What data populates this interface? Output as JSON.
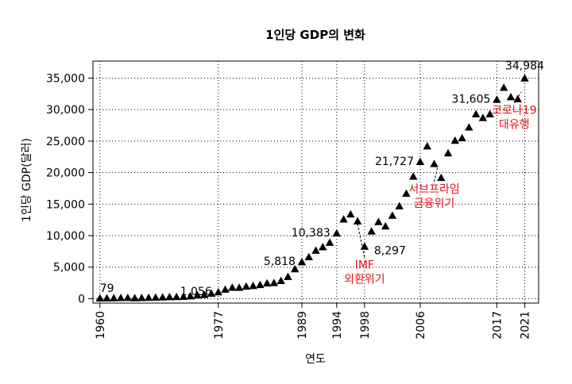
{
  "chart_data": {
    "type": "scatter",
    "marker": "filled-triangle",
    "title": "1인당 GDP의 변화",
    "xlabel": "연도",
    "ylabel": "1인당 GDP(달러)",
    "xlim": [
      1959,
      2023
    ],
    "ylim": [
      -700,
      37700
    ],
    "grid": true,
    "grid_style": "dotted",
    "x_ticks": [
      1960,
      1977,
      1989,
      1994,
      1998,
      2006,
      2017,
      2021
    ],
    "y_ticks": [
      0,
      5000,
      10000,
      15000,
      20000,
      25000,
      30000,
      35000
    ],
    "y_tick_labels": [
      "0",
      "5,000",
      "10,000",
      "15,000",
      "20,000",
      "25,000",
      "30,000",
      "35,000"
    ],
    "x": [
      1960,
      1961,
      1962,
      1963,
      1964,
      1965,
      1966,
      1967,
      1968,
      1969,
      1970,
      1971,
      1972,
      1973,
      1974,
      1975,
      1976,
      1977,
      1978,
      1979,
      1980,
      1981,
      1982,
      1983,
      1984,
      1985,
      1986,
      1987,
      1988,
      1989,
      1990,
      1991,
      1992,
      1993,
      1994,
      1995,
      1996,
      1997,
      1998,
      1999,
      2000,
      2001,
      2002,
      2003,
      2004,
      2005,
      2006,
      2007,
      2008,
      2009,
      2010,
      2011,
      2012,
      2013,
      2014,
      2015,
      2016,
      2017,
      2018,
      2019,
      2020,
      2021
    ],
    "y": [
      79,
      90,
      105,
      140,
      150,
      110,
      135,
      165,
      195,
      240,
      280,
      300,
      325,
      410,
      560,
      630,
      830,
      1056,
      1470,
      1780,
      1760,
      1950,
      2050,
      2200,
      2450,
      2520,
      2840,
      3490,
      4700,
      5818,
      6630,
      7650,
      8200,
      8900,
      10383,
      12600,
      13400,
      12300,
      8297,
      10700,
      12200,
      11500,
      13200,
      14700,
      16700,
      19400,
      21727,
      24200,
      21400,
      19200,
      23100,
      25100,
      25500,
      27200,
      29300,
      28700,
      29300,
      31605,
      33500,
      32000,
      31700,
      34984
    ],
    "annotations": {
      "values": [
        {
          "x": 1960,
          "y": 79,
          "text": "79",
          "pos": "above-right"
        },
        {
          "x": 1977,
          "y": 1056,
          "text": "1,056",
          "pos": "left"
        },
        {
          "x": 1989,
          "y": 5818,
          "text": "5,818",
          "pos": "left"
        },
        {
          "x": 1994,
          "y": 10383,
          "text": "10,383",
          "pos": "left"
        },
        {
          "x": 1998,
          "y": 8297,
          "text": "8,297",
          "pos": "right"
        },
        {
          "x": 2006,
          "y": 21727,
          "text": "21,727",
          "pos": "left"
        },
        {
          "x": 2017,
          "y": 31605,
          "text": "31,605",
          "pos": "left"
        },
        {
          "x": 2021,
          "y": 34984,
          "text": "34,984",
          "pos": "above"
        }
      ],
      "events": [
        {
          "lines": [
            "IMF",
            "외환위기"
          ],
          "x": 1998,
          "y": 4800,
          "arrow_to": {
            "x": 1997,
            "y": 12300
          }
        },
        {
          "lines": [
            "서브프라임",
            "금융위기"
          ],
          "x": 2008,
          "y": 16800,
          "arrow_to": {
            "x": 2008.5,
            "y": 21400
          }
        },
        {
          "lines": [
            "코로나19",
            "대유행"
          ],
          "x": 2019.5,
          "y": 29300,
          "arrow_to": {
            "x": 2020.5,
            "y": 33300
          }
        }
      ],
      "event_color": "#e8111a"
    }
  }
}
